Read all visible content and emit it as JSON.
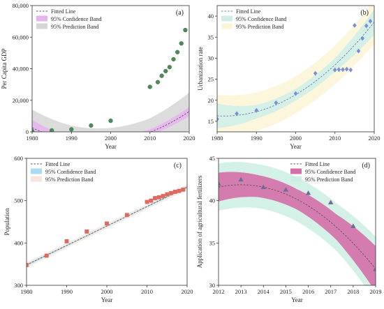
{
  "chart_data": [
    {
      "type": "scatter",
      "panel_label": "(a)",
      "xlabel": "Year",
      "ylabel": "Per Capita GDP",
      "xlim": [
        1980,
        2020
      ],
      "ylim": [
        0,
        80000
      ],
      "xticks": [
        1980,
        1990,
        2000,
        2010,
        2020
      ],
      "xtick_labels": [
        "1980",
        "1990",
        "2000",
        "2010",
        "2020"
      ],
      "yticks": [
        0,
        20000,
        40000,
        60000,
        80000
      ],
      "ytick_labels": [
        "0",
        "20,000",
        "40,000",
        "60,000",
        "80,000"
      ],
      "legend": {
        "position": "top-left",
        "labels": [
          "Fitted Line",
          "95% Confidence Band",
          "95% Prediction Band"
        ]
      },
      "colors": {
        "points": "#4f8a5b",
        "line": "#555555",
        "confidence": "#e7b5ee",
        "prediction": "#d6d6d6"
      },
      "marker": "circle",
      "x": [
        1980,
        1985,
        1990,
        1995,
        2000,
        2010,
        2012,
        2013,
        2014,
        2015,
        2016,
        2017,
        2018,
        2019
      ],
      "y": [
        500,
        900,
        1600,
        4000,
        7000,
        28500,
        31500,
        35500,
        38500,
        41000,
        46000,
        50500,
        56000,
        64500
      ],
      "fit": [
        2580,
        -1150,
        35.2
      ],
      "fit_origin": 1980,
      "conf_hw": [
        5000,
        1800,
        3500,
        1800,
        2900
      ],
      "pred_hw": [
        11500,
        9300,
        8800,
        8800,
        12000
      ]
    },
    {
      "type": "scatter",
      "panel_label": "(b)",
      "xlabel": "Year",
      "ylabel": "Urbanization rate",
      "xlim": [
        1980,
        2020
      ],
      "ylim": [
        12.5,
        42.5
      ],
      "xticks": [
        1980,
        1990,
        2000,
        2010,
        2020
      ],
      "xtick_labels": [
        "1980",
        "1990",
        "2000",
        "2010",
        "2020"
      ],
      "yticks": [
        15,
        20,
        25,
        30,
        35,
        40
      ],
      "ytick_labels": [
        "15",
        "20",
        "25",
        "30",
        "35",
        "40"
      ],
      "legend": {
        "position": "top-left",
        "labels": [
          "Fitted Line",
          "95% Confidence Band",
          "95% Prediction Band"
        ]
      },
      "colors": {
        "points": "#7b8fd8",
        "line": "#6b7fb0",
        "confidence": "#cfeee8",
        "prediction": "#fbf6d6"
      },
      "marker": "diamond",
      "x": [
        1980,
        1985,
        1990,
        1995,
        2000,
        2005,
        2010,
        2011,
        2012,
        2013,
        2014,
        2015,
        2016,
        2017,
        2018,
        2019
      ],
      "y": [
        15.5,
        16.8,
        17.6,
        19.4,
        21.6,
        26.4,
        27.2,
        27.3,
        27.3,
        27.4,
        27.2,
        37.8,
        31.7,
        34.7,
        37.7,
        38.8
      ],
      "fit": [
        16.3,
        -0.055,
        0.0153
      ],
      "fit_origin": 1980,
      "conf_hw": [
        2.9,
        1.6,
        1.4,
        1.6,
        3.0
      ],
      "pred_hw": [
        5.0,
        4.6,
        4.4,
        4.6,
        5.2
      ]
    },
    {
      "type": "scatter",
      "panel_label": "(c)",
      "xlabel": "Year",
      "ylabel": "Population",
      "xlim": [
        1980,
        2020
      ],
      "ylim": [
        300,
        600
      ],
      "xticks": [
        1980,
        1990,
        2000,
        2010,
        2020
      ],
      "xtick_labels": [
        "1980",
        "1990",
        "2000",
        "2010",
        "2020"
      ],
      "yticks": [
        300,
        400,
        500,
        600
      ],
      "ytick_labels": [
        "300",
        "400",
        "500",
        "600"
      ],
      "legend": {
        "position": "top-left",
        "labels": [
          "Fitted Line",
          "95% Confidence Band",
          "95% Prediction Band"
        ]
      },
      "colors": {
        "points": "#e0685f",
        "line": "#555555",
        "confidence": "#a9dcf3",
        "prediction": "#f7e6df"
      },
      "marker": "square",
      "x": [
        1980,
        1985,
        1990,
        1995,
        2000,
        2005,
        2010,
        2011,
        2012,
        2013,
        2014,
        2015,
        2016,
        2017,
        2018,
        2019
      ],
      "y": [
        348,
        370,
        404,
        427,
        446,
        466,
        497,
        500,
        506,
        508,
        511,
        515,
        518,
        521,
        523,
        526
      ],
      "fit": [
        348,
        4.6,
        0
      ],
      "fit_origin": 1980,
      "conf_hw": [
        2.5,
        1.5,
        1.2,
        1.5,
        2.5
      ],
      "pred_hw": [
        6.5,
        6.0,
        6.0,
        6.0,
        6.5
      ]
    },
    {
      "type": "scatter",
      "panel_label": "(d)",
      "xlabel": "Year",
      "ylabel": "Application of agricultural fertilizers",
      "xlim": [
        2012,
        2019
      ],
      "ylim": [
        30,
        45
      ],
      "xticks": [
        2012,
        2013,
        2014,
        2015,
        2016,
        2017,
        2018,
        2019
      ],
      "xtick_labels": [
        "2012",
        "2013",
        "2014",
        "2015",
        "2016",
        "2017",
        "2018",
        "2019"
      ],
      "yticks": [
        30,
        35,
        40,
        45
      ],
      "ytick_labels": [
        "30",
        "35",
        "40",
        "45"
      ],
      "legend": {
        "position": "top-right",
        "labels": [
          "Fitted Line",
          "95% Confidence Band",
          "95% Prediction Band"
        ]
      },
      "colors": {
        "points": "#6e6a9a",
        "line": "#555555",
        "confidence": "#d46fa8",
        "prediction": "#cdeee3"
      },
      "marker": "triangle",
      "x": [
        2012,
        2013,
        2014,
        2015,
        2016,
        2017,
        2018,
        2019
      ],
      "y": [
        42.0,
        42.5,
        41.6,
        41.3,
        40.9,
        39.8,
        37.0,
        31.9
      ],
      "fit": [
        41.6,
        0.55,
        -0.276
      ],
      "fit_origin": 2012,
      "conf_hw": [
        1.7,
        1.3,
        1.2,
        1.5,
        2.7
      ],
      "pred_hw": [
        2.8,
        2.6,
        2.6,
        2.8,
        3.8
      ]
    }
  ]
}
